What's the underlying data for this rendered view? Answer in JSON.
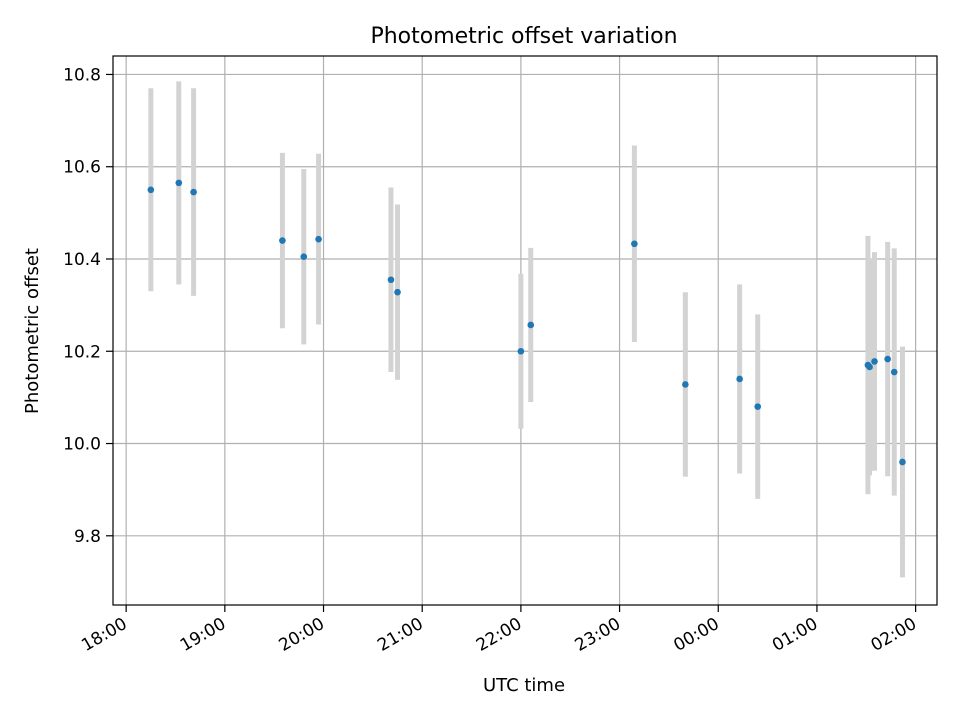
{
  "chart_data": {
    "type": "scatter",
    "title": "Photometric offset variation",
    "xlabel": "UTC time",
    "ylabel": "Photometric offset",
    "grid": true,
    "xlim": [
      "17:52",
      "02:13"
    ],
    "ylim": [
      9.65,
      10.84
    ],
    "x_ticks": [
      "18:00",
      "19:00",
      "20:00",
      "21:00",
      "22:00",
      "23:00",
      "00:00",
      "01:00",
      "02:00"
    ],
    "y_ticks": [
      "9.8",
      "10.0",
      "10.2",
      "10.4",
      "10.6",
      "10.8"
    ],
    "colors": {
      "point": "#1f77b4",
      "errorbar": "#d3d3d3",
      "grid": "#b0b0b0"
    },
    "points": [
      {
        "x": "18:15",
        "y": 10.55,
        "yerr": 0.22
      },
      {
        "x": "18:32",
        "y": 10.565,
        "yerr": 0.22
      },
      {
        "x": "18:41",
        "y": 10.545,
        "yerr": 0.225
      },
      {
        "x": "19:35",
        "y": 10.44,
        "yerr": 0.19
      },
      {
        "x": "19:48",
        "y": 10.405,
        "yerr": 0.19
      },
      {
        "x": "19:57",
        "y": 10.443,
        "yerr": 0.185
      },
      {
        "x": "20:41",
        "y": 10.355,
        "yerr": 0.2
      },
      {
        "x": "20:45",
        "y": 10.328,
        "yerr": 0.19
      },
      {
        "x": "22:00",
        "y": 10.2,
        "yerr": 0.168
      },
      {
        "x": "22:06",
        "y": 10.257,
        "yerr": 0.167
      },
      {
        "x": "23:09",
        "y": 10.433,
        "yerr": 0.213
      },
      {
        "x": "23:40",
        "y": 10.128,
        "yerr": 0.2
      },
      {
        "x": "00:13",
        "y": 10.14,
        "yerr": 0.205
      },
      {
        "x": "00:24",
        "y": 10.08,
        "yerr": 0.2
      },
      {
        "x": "01:31",
        "y": 10.17,
        "yerr": 0.28
      },
      {
        "x": "01:32",
        "y": 10.166,
        "yerr": 0.235
      },
      {
        "x": "01:35",
        "y": 10.178,
        "yerr": 0.237
      },
      {
        "x": "01:43",
        "y": 10.183,
        "yerr": 0.254
      },
      {
        "x": "01:47",
        "y": 10.155,
        "yerr": 0.268
      },
      {
        "x": "01:52",
        "y": 9.96,
        "yerr": 0.25
      }
    ]
  }
}
